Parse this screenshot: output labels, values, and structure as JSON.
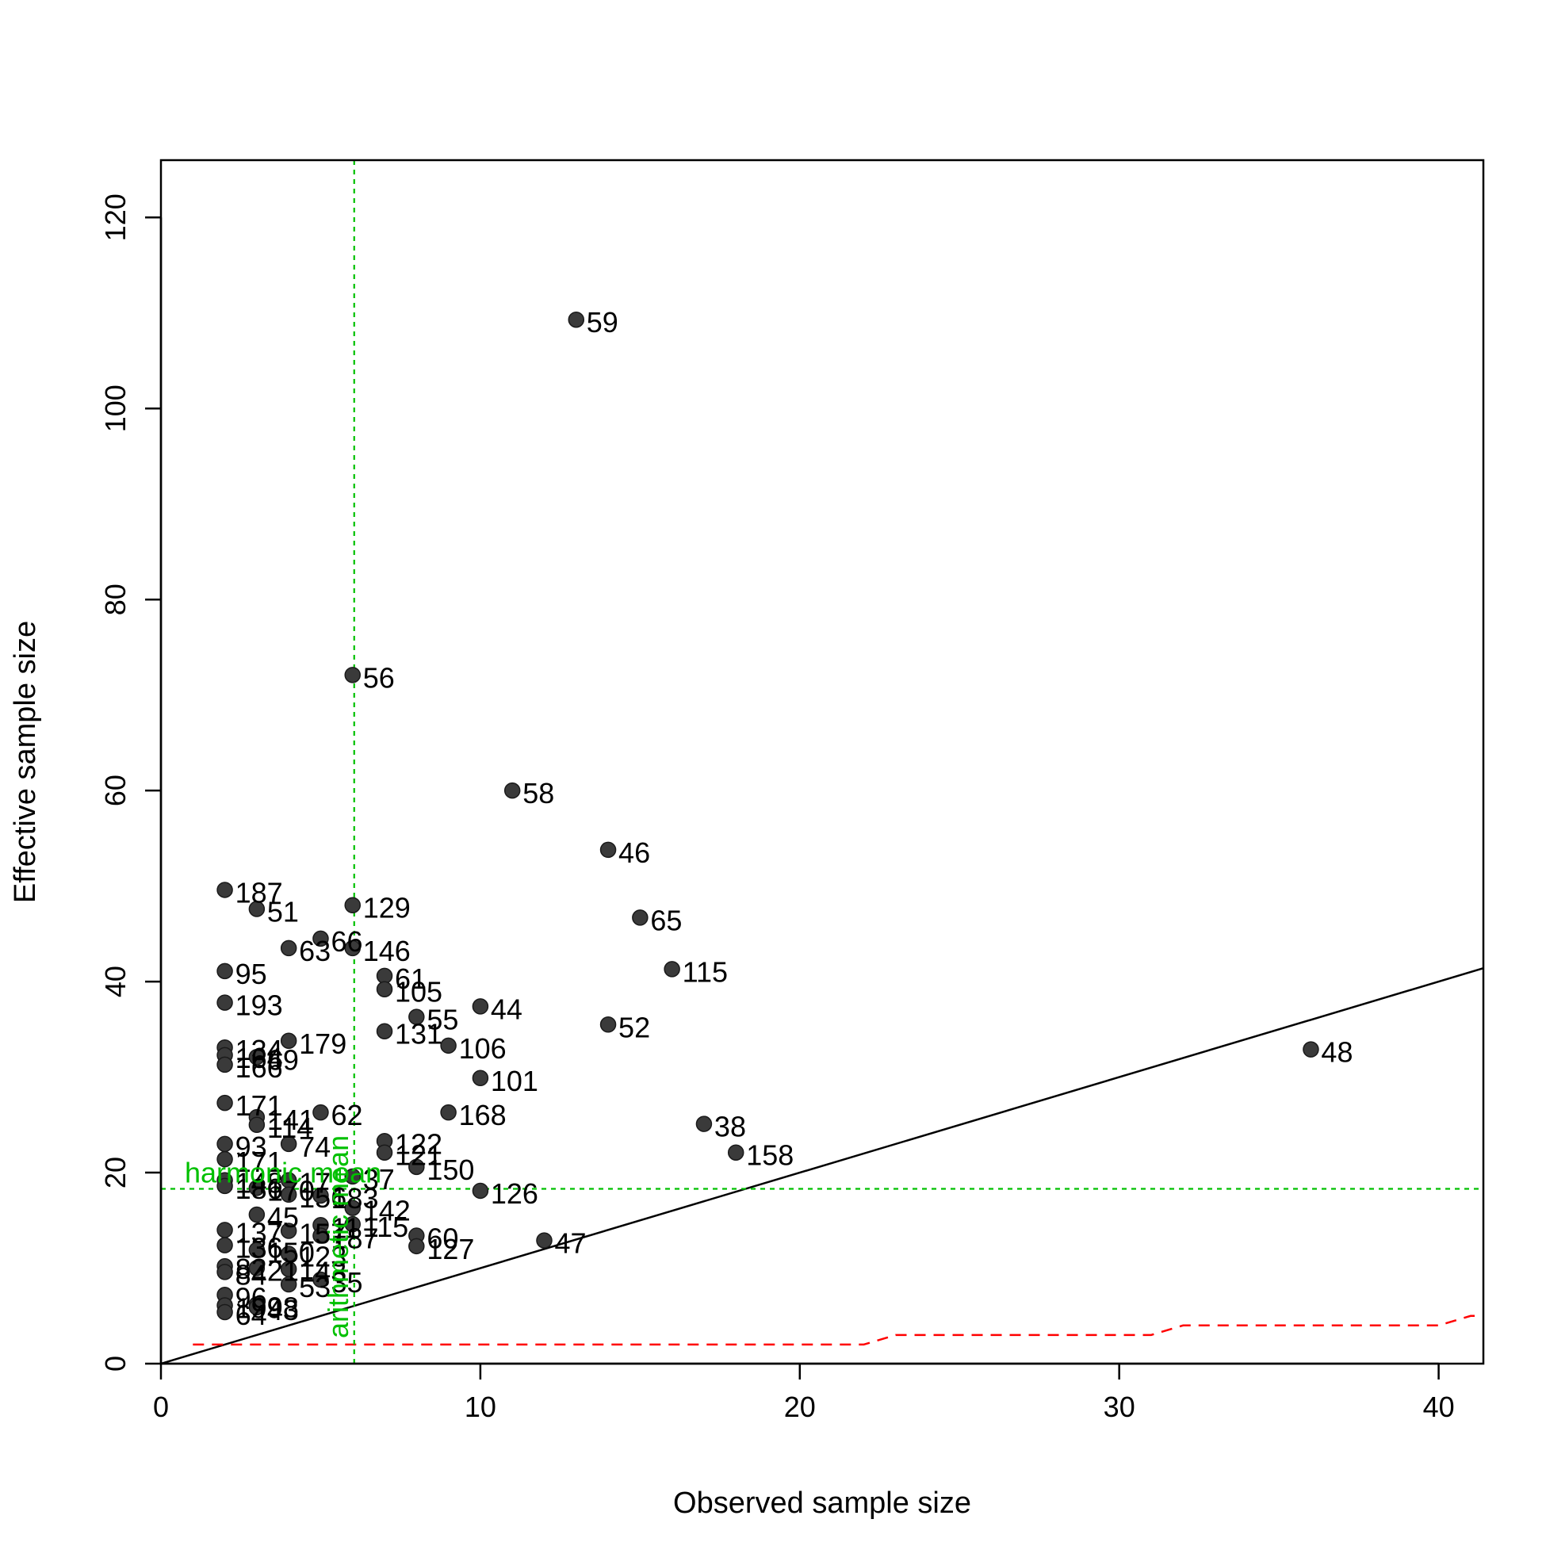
{
  "colors": {
    "point": "#3a3a3a",
    "point_stroke": "#1a1a1a",
    "reference_line": "#00c000",
    "lower_bound": "#ff0000",
    "identity_line": "#000000"
  },
  "chart_data": {
    "type": "scatter",
    "title": "",
    "xlabel": "Observed sample size",
    "ylabel": "Effective sample size",
    "xlim": [
      0,
      41.4
    ],
    "ylim": [
      0,
      126
    ],
    "xticks": [
      0,
      10,
      20,
      30,
      40
    ],
    "yticks": [
      0,
      20,
      40,
      60,
      80,
      100,
      120
    ],
    "grid": false,
    "legend": "none",
    "points": [
      {
        "id": "59",
        "x": 13,
        "y": 109.3
      },
      {
        "id": "56",
        "x": 6,
        "y": 72.1
      },
      {
        "id": "58",
        "x": 11,
        "y": 60
      },
      {
        "id": "46",
        "x": 14,
        "y": 53.8
      },
      {
        "id": "187",
        "x": 2,
        "y": 49.6
      },
      {
        "id": "51",
        "x": 3,
        "y": 47.6
      },
      {
        "id": "129",
        "x": 6,
        "y": 48
      },
      {
        "id": "65",
        "x": 15,
        "y": 46.7
      },
      {
        "id": "66",
        "x": 5,
        "y": 44.5
      },
      {
        "id": "63",
        "x": 4,
        "y": 43.5
      },
      {
        "id": "146",
        "x": 6,
        "y": 43.5
      },
      {
        "id": "115",
        "x": 16,
        "y": 41.3
      },
      {
        "id": "95",
        "x": 2,
        "y": 41.1
      },
      {
        "id": "61",
        "x": 7,
        "y": 40.6
      },
      {
        "id": "105",
        "x": 7,
        "y": 39.2
      },
      {
        "id": "193",
        "x": 2,
        "y": 37.8
      },
      {
        "id": "44",
        "x": 10,
        "y": 37.4
      },
      {
        "id": "55",
        "x": 8,
        "y": 36.3
      },
      {
        "id": "52",
        "x": 14,
        "y": 35.5
      },
      {
        "id": "131",
        "x": 7,
        "y": 34.8
      },
      {
        "id": "179",
        "x": 4,
        "y": 33.8
      },
      {
        "id": "106",
        "x": 9,
        "y": 33.3
      },
      {
        "id": "134",
        "x": 2,
        "y": 33.1
      },
      {
        "id": "48",
        "x": 36,
        "y": 32.9
      },
      {
        "id": "164",
        "x": 2,
        "y": 32.3
      },
      {
        "id": "69",
        "x": 3,
        "y": 32.1
      },
      {
        "id": "166",
        "x": 2,
        "y": 31.3
      },
      {
        "id": "101",
        "x": 10,
        "y": 29.9
      },
      {
        "id": "171",
        "x": 2,
        "y": 27.3
      },
      {
        "id": "62",
        "x": 5,
        "y": 26.3
      },
      {
        "id": "168",
        "x": 9,
        "y": 26.3
      },
      {
        "id": "141",
        "x": 3,
        "y": 25.8
      },
      {
        "id": "38",
        "x": 17,
        "y": 25.1
      },
      {
        "id": "114",
        "x": 3,
        "y": 25
      },
      {
        "id": "122",
        "x": 7,
        "y": 23.3
      },
      {
        "id": "74",
        "x": 4,
        "y": 23
      },
      {
        "id": "93",
        "x": 2,
        "y": 23
      },
      {
        "id": "121",
        "x": 7,
        "y": 22.1
      },
      {
        "id": "158",
        "x": 18,
        "y": 22.1
      },
      {
        "id": "171b",
        "label": "171",
        "x": 2,
        "y": 21.4
      },
      {
        "id": "150",
        "x": 8,
        "y": 20.6
      },
      {
        "id": "37",
        "x": 6,
        "y": 19.6
      },
      {
        "id": "17",
        "x": 4,
        "y": 19.2
      },
      {
        "id": "148",
        "x": 2,
        "y": 19.2
      },
      {
        "id": "186",
        "x": 2,
        "y": 18.6
      },
      {
        "id": "126",
        "x": 10,
        "y": 18.1
      },
      {
        "id": "170",
        "x": 3,
        "y": 18.4
      },
      {
        "id": "156",
        "x": 4,
        "y": 17.7
      },
      {
        "id": "183",
        "x": 5,
        "y": 17.6
      },
      {
        "id": "142",
        "x": 6,
        "y": 16.3
      },
      {
        "id": "45",
        "x": 3,
        "y": 15.6
      },
      {
        "id": "115b",
        "label": "115",
        "x": 6,
        "y": 14.6
      },
      {
        "id": "11",
        "x": 5,
        "y": 14.5
      },
      {
        "id": "137",
        "x": 2,
        "y": 14
      },
      {
        "id": "157",
        "x": 4,
        "y": 13.9
      },
      {
        "id": "60",
        "x": 8,
        "y": 13.4
      },
      {
        "id": "187b",
        "label": "187",
        "x": 5,
        "y": 13.4
      },
      {
        "id": "47",
        "x": 12,
        "y": 12.9
      },
      {
        "id": "136",
        "x": 2,
        "y": 12.4
      },
      {
        "id": "127",
        "x": 8,
        "y": 12.3
      },
      {
        "id": "150b",
        "label": "150",
        "x": 3,
        "y": 11.9
      },
      {
        "id": "123",
        "x": 4,
        "y": 11.5
      },
      {
        "id": "82",
        "x": 2,
        "y": 10.2
      },
      {
        "id": "21",
        "x": 3,
        "y": 10
      },
      {
        "id": "143",
        "x": 4,
        "y": 9.9
      },
      {
        "id": "84",
        "x": 2,
        "y": 9.6
      },
      {
        "id": "35",
        "x": 5,
        "y": 8.8
      },
      {
        "id": "53",
        "x": 4,
        "y": 8.3
      },
      {
        "id": "96",
        "x": 2,
        "y": 7.2
      },
      {
        "id": "98",
        "x": 3,
        "y": 6.2
      },
      {
        "id": "199",
        "x": 2,
        "y": 6.1
      },
      {
        "id": "43",
        "x": 3,
        "y": 5.9
      },
      {
        "id": "64",
        "x": 2,
        "y": 5.4
      }
    ],
    "reference_lines": {
      "harmonic_mean": {
        "label": "harmonic mean",
        "value": 18.3,
        "orientation": "horizontal"
      },
      "arithmetic_mean": {
        "label": "arithmetic mean",
        "value": 6.05,
        "orientation": "vertical"
      }
    },
    "identity_line": {
      "slope": 1,
      "intercept": 0
    },
    "lower_bound_line": {
      "x": [
        1,
        22,
        23,
        31,
        32,
        40,
        41,
        41.4
      ],
      "y": [
        2,
        2,
        3,
        3,
        4,
        4,
        5,
        5
      ]
    }
  }
}
